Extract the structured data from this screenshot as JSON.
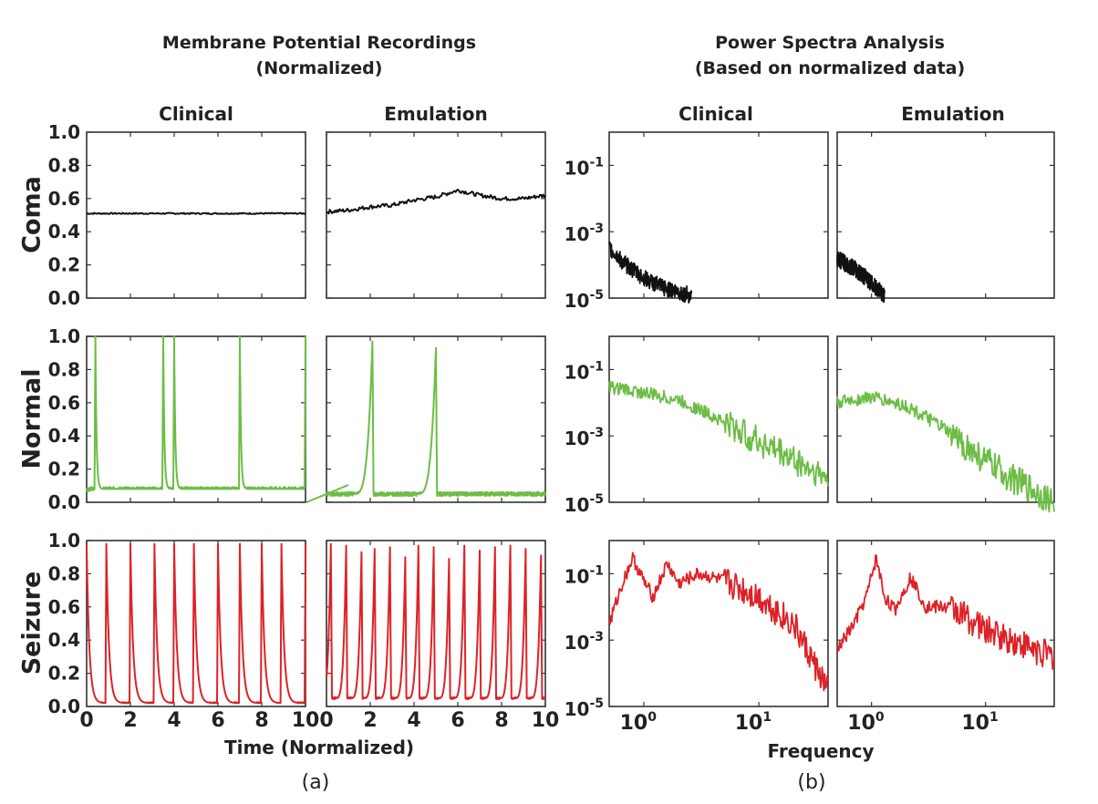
{
  "headers": {
    "left_line1": "Membrane Potential Recordings",
    "left_line2": "(Normalized)",
    "right_line1": "Power Spectra Analysis",
    "right_line2": "(Based on normalized data)"
  },
  "columns": {
    "left_clinical": "Clinical",
    "left_emulation": "Emulation",
    "right_clinical": "Clinical",
    "right_emulation": "Emulation"
  },
  "rows": [
    "Coma",
    "Normal",
    "Seizure"
  ],
  "axis_titles": {
    "time": "Time (Normalized)",
    "frequency": "Frequency"
  },
  "panel_labels": {
    "a": "(a)",
    "b": "(b)"
  },
  "colors": {
    "Coma": "#111111",
    "Normal": "#6cbd45",
    "Seizure": "#dd2227",
    "axes": "#333333"
  },
  "chart_data": [
    {
      "type": "line",
      "panel": "(a)",
      "title": "Membrane Potential Recordings (Normalized)",
      "xlabel": "Time (Normalized)",
      "ylabel": "",
      "xlim": [
        0,
        10
      ],
      "ylim": [
        0,
        1
      ],
      "xticks": [
        0,
        2,
        4,
        6,
        8,
        10
      ],
      "yticks": [
        0.0,
        0.2,
        0.4,
        0.6,
        0.8,
        1.0
      ],
      "ytick_labels": [
        "0.0",
        "0.2",
        "0.4",
        "0.6",
        "0.8",
        "1.0"
      ],
      "columns": [
        "Clinical",
        "Emulation"
      ],
      "series": [
        {
          "row": "Coma",
          "column": "Clinical",
          "x": [
            0,
            2,
            4,
            6,
            8,
            10
          ],
          "values": [
            0.51,
            0.51,
            0.51,
            0.51,
            0.51,
            0.51
          ]
        },
        {
          "row": "Coma",
          "column": "Emulation",
          "x": [
            0,
            1,
            2,
            3,
            4,
            5,
            6,
            7,
            8,
            9,
            10
          ],
          "values": [
            0.52,
            0.53,
            0.55,
            0.56,
            0.59,
            0.61,
            0.65,
            0.62,
            0.6,
            0.6,
            0.62
          ]
        },
        {
          "row": "Normal",
          "column": "Clinical",
          "baseline": 0.08,
          "spike_times": [
            0.4,
            3.5,
            4.0,
            7.0,
            10.0
          ],
          "spike_peak": 1.0
        },
        {
          "row": "Normal",
          "column": "Emulation",
          "baseline": 0.05,
          "spike_times": [
            2.1,
            5.0
          ],
          "spike_peak": [
            0.97,
            0.93
          ]
        },
        {
          "row": "Seizure",
          "column": "Clinical",
          "baseline": 0.02,
          "spike_times": [
            0,
            0.9,
            2.0,
            3.1,
            4.0,
            4.9,
            6.0,
            7.0,
            8.0,
            8.9,
            10.0
          ],
          "spike_peak": 0.98
        },
        {
          "row": "Seizure",
          "column": "Emulation",
          "baseline": 0.05,
          "spike_times": [
            0.2,
            0.9,
            1.6,
            2.2,
            2.9,
            3.6,
            4.2,
            4.9,
            5.6,
            6.3,
            7.0,
            7.7,
            8.4,
            9.1,
            9.8
          ],
          "spike_peak": [
            0.98,
            0.97,
            0.93,
            0.95,
            0.96,
            0.9,
            0.97,
            0.96,
            0.89,
            0.97,
            0.94,
            0.96,
            0.97,
            0.95,
            0.91
          ]
        }
      ]
    },
    {
      "type": "line",
      "panel": "(b)",
      "title": "Power Spectra Analysis (Based on normalized data)",
      "xlabel": "Frequency",
      "ylabel": "",
      "xscale": "log",
      "yscale": "log",
      "xlim": [
        0.5,
        40
      ],
      "ylim": [
        1e-05,
        1
      ],
      "xtick_labels": [
        "10^0",
        "10^1"
      ],
      "ytick_labels": [
        "10^-1",
        "10^-3",
        "10^-5"
      ],
      "columns": [
        "Clinical",
        "Emulation"
      ],
      "series": [
        {
          "row": "Coma",
          "column": "Clinical",
          "x": [
            0.5,
            0.7,
            1.0,
            1.5,
            2.0,
            2.6
          ],
          "values": [
            0.0003,
            0.0001,
            4e-05,
            2e-05,
            1.5e-05,
            1.2e-05
          ]
        },
        {
          "row": "Coma",
          "column": "Emulation",
          "x": [
            0.5,
            0.7,
            0.9,
            1.1,
            1.3
          ],
          "values": [
            0.00015,
            8e-05,
            4e-05,
            2e-05,
            1.2e-05
          ]
        },
        {
          "row": "Normal",
          "column": "Clinical",
          "x": [
            0.5,
            1.0,
            2.0,
            4.0,
            8.0,
            16.0,
            40.0
          ],
          "values": [
            0.03,
            0.02,
            0.012,
            0.004,
            0.001,
            0.0003,
            5e-05
          ]
        },
        {
          "row": "Normal",
          "column": "Emulation",
          "x": [
            0.5,
            1.0,
            2.0,
            4.0,
            8.0,
            16.0,
            40.0
          ],
          "values": [
            0.01,
            0.015,
            0.008,
            0.002,
            0.0003,
            6e-05,
            1e-05
          ]
        },
        {
          "row": "Seizure",
          "column": "Clinical",
          "x": [
            0.5,
            0.65,
            0.8,
            1.0,
            1.2,
            1.6,
            2.0,
            3.0,
            5.0,
            10.0,
            20.0,
            40.0
          ],
          "values": [
            0.003,
            0.05,
            0.3,
            0.06,
            0.02,
            0.2,
            0.05,
            0.1,
            0.06,
            0.02,
            0.003,
            3e-05
          ]
        },
        {
          "row": "Seizure",
          "column": "Emulation",
          "x": [
            0.5,
            0.7,
            0.9,
            1.1,
            1.3,
            1.6,
            2.2,
            3.0,
            5.0,
            10.0,
            20.0,
            40.0
          ],
          "values": [
            0.0005,
            0.003,
            0.02,
            0.3,
            0.02,
            0.008,
            0.08,
            0.01,
            0.01,
            0.002,
            0.0008,
            0.0003
          ]
        }
      ]
    }
  ]
}
